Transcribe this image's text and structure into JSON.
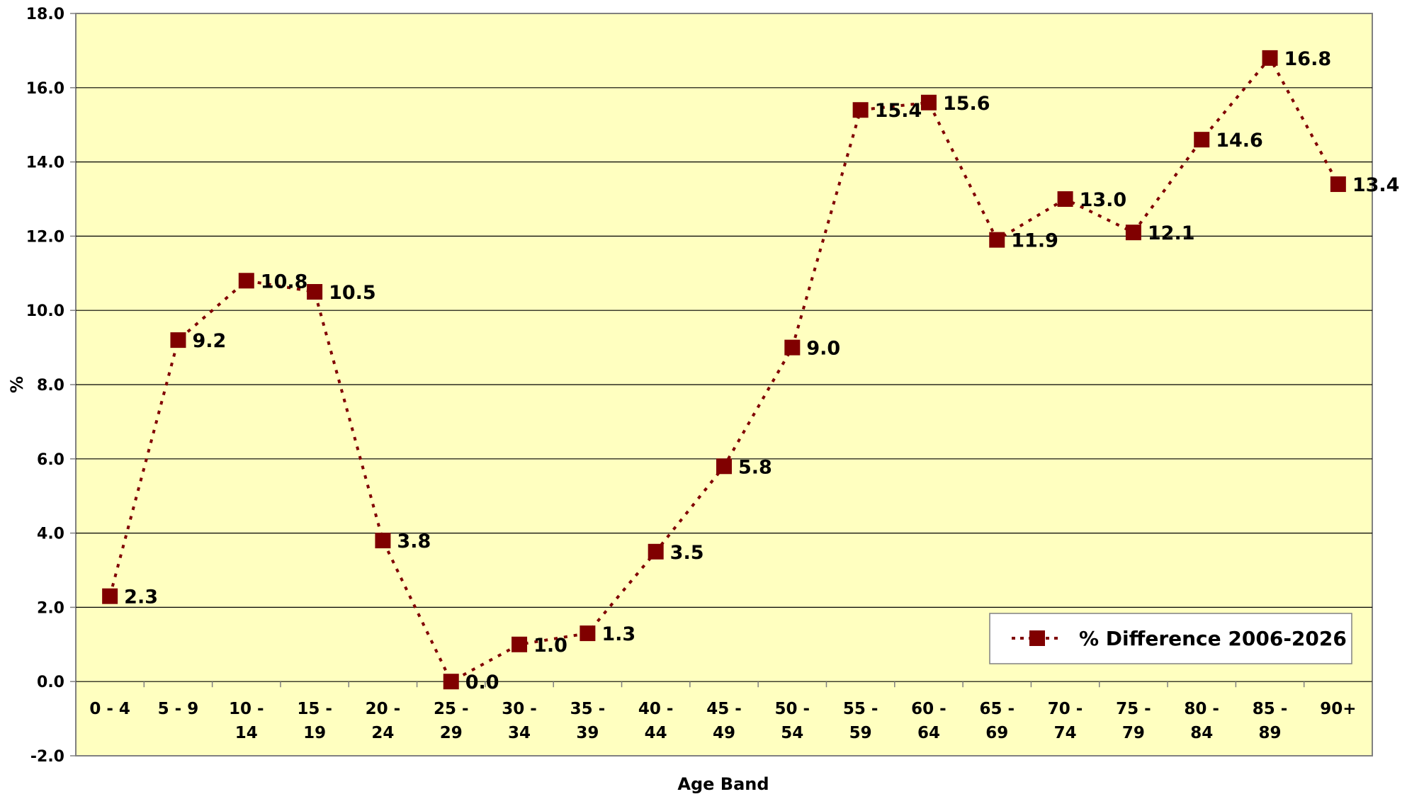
{
  "chart_data": {
    "type": "line",
    "title": "",
    "xlabel": "Age Band",
    "ylabel": "%",
    "ylim": [
      -2.0,
      18.0
    ],
    "ytick_step": 2.0,
    "ytick_labels": [
      "-2.0",
      "0.0",
      "2.0",
      "4.0",
      "6.0",
      "8.0",
      "10.0",
      "12.0",
      "14.0",
      "16.0",
      "18.0"
    ],
    "grid": true,
    "legend_position": "bottom-right",
    "plot_background": "#FFFFC0",
    "categories": [
      "0 - 4",
      "5 - 9",
      "10 - 14",
      "15 - 19",
      "20 - 24",
      "25 - 29",
      "30 - 34",
      "35 - 39",
      "40 - 44",
      "45 - 49",
      "50 - 54",
      "55 - 59",
      "60 - 64",
      "65 - 69",
      "70 - 74",
      "75 - 79",
      "80 - 84",
      "85 - 89",
      "90+"
    ],
    "category_label_lines": [
      [
        "0 - 4"
      ],
      [
        "5 - 9"
      ],
      [
        "10 -",
        "14"
      ],
      [
        "15 -",
        "19"
      ],
      [
        "20 -",
        "24"
      ],
      [
        "25 -",
        "29"
      ],
      [
        "30 -",
        "34"
      ],
      [
        "35 -",
        "39"
      ],
      [
        "40 -",
        "44"
      ],
      [
        "45 -",
        "49"
      ],
      [
        "50 -",
        "54"
      ],
      [
        "55 -",
        "59"
      ],
      [
        "60 -",
        "64"
      ],
      [
        "65 -",
        "69"
      ],
      [
        "70 -",
        "74"
      ],
      [
        "75 -",
        "79"
      ],
      [
        "80 -",
        "84"
      ],
      [
        "85 -",
        "89"
      ],
      [
        "90+"
      ]
    ],
    "series": [
      {
        "name": "% Difference 2006-2026",
        "color": "#800000",
        "line_style": "dotted",
        "marker": "square",
        "values": [
          2.3,
          9.2,
          10.8,
          10.5,
          3.8,
          0.0,
          1.0,
          1.3,
          3.5,
          5.8,
          9.0,
          15.4,
          15.6,
          11.9,
          13.0,
          12.1,
          14.6,
          16.8,
          13.4
        ],
        "value_labels": [
          "2.3",
          "9.2",
          "10.8",
          "10.5",
          "3.8",
          "0.0",
          "1.0",
          "1.3",
          "3.5",
          "5.8",
          "9.0",
          "15.4",
          "15.6",
          "11.9",
          "13.0",
          "12.1",
          "14.6",
          "16.8",
          "13.4"
        ]
      }
    ]
  }
}
